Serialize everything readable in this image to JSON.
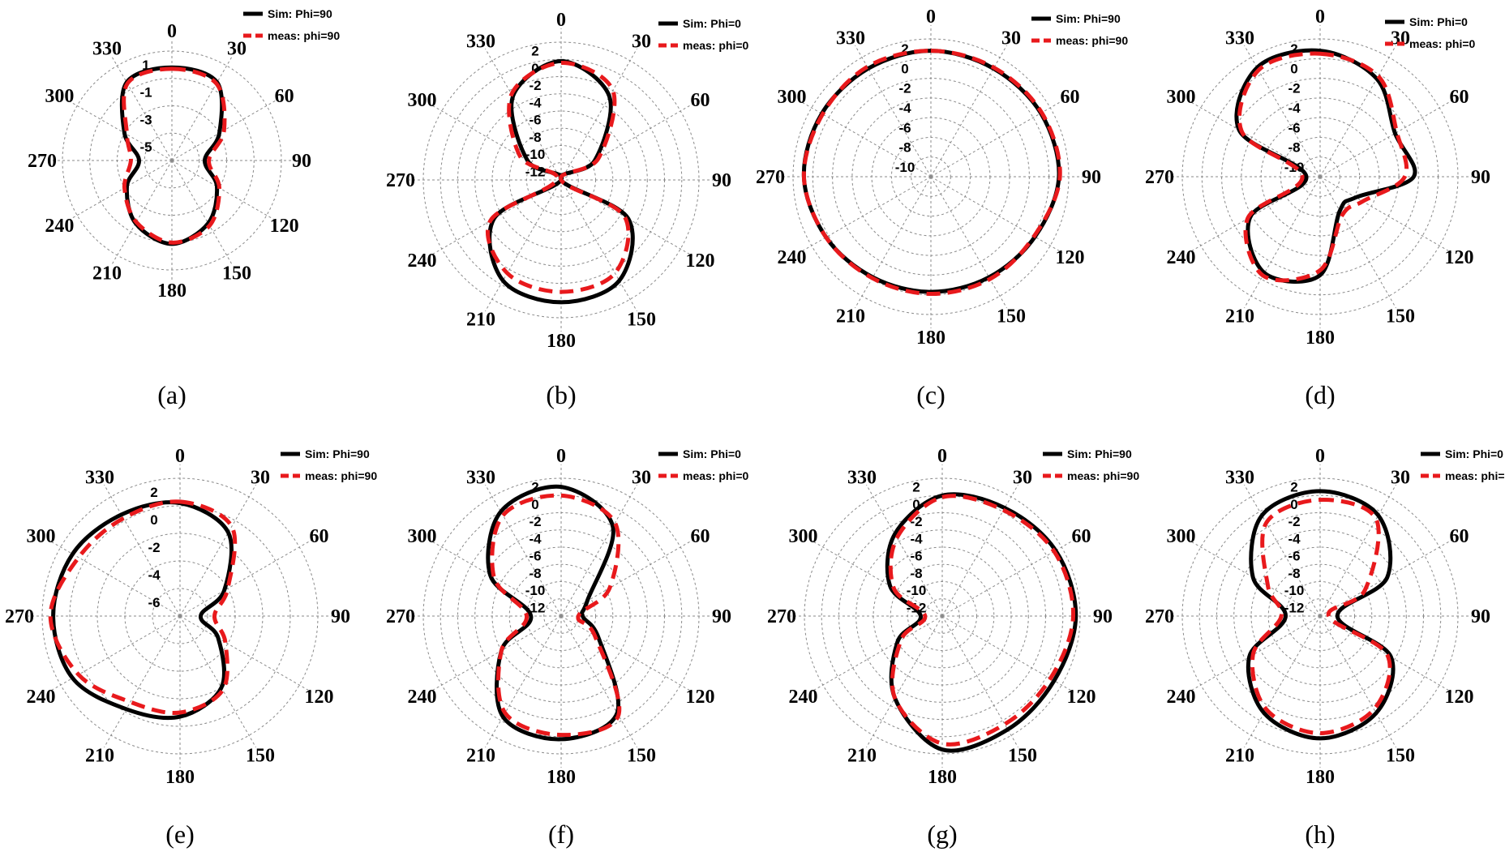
{
  "chart_data": [
    {
      "type": "polar-line",
      "caption": "(a)",
      "angles": [
        0,
        30,
        60,
        90,
        120,
        150,
        180,
        210,
        240,
        270,
        300,
        330
      ],
      "rlim": [
        -6,
        2
      ],
      "radial_ticks": [
        "1",
        "-1",
        "-3",
        "-5"
      ],
      "series": [
        {
          "name": "Sim: Phi=90",
          "theta": [
            0,
            30,
            60,
            90,
            120,
            150,
            180,
            210,
            240,
            270,
            300,
            330
          ],
          "r": [
            0.8,
            0.6,
            -2.0,
            -3.6,
            -2.2,
            -0.7,
            0.1,
            -0.7,
            -2.2,
            -3.6,
            -2.0,
            0.6
          ]
        },
        {
          "name": "meas: phi=90",
          "theta": [
            0,
            30,
            60,
            90,
            120,
            150,
            180,
            210,
            240,
            270,
            300,
            330
          ],
          "r": [
            0.7,
            0.5,
            -1.6,
            -3.3,
            -2.0,
            -0.5,
            0.0,
            -0.8,
            -2.0,
            -3.0,
            -2.2,
            0.5
          ]
        }
      ]
    },
    {
      "type": "polar-line",
      "caption": "(b)",
      "angles": [
        0,
        30,
        60,
        90,
        120,
        150,
        180,
        210,
        240,
        270,
        300,
        330
      ],
      "rlim": [
        -13,
        3
      ],
      "radial_ticks": [
        "2",
        "0",
        "-2",
        "-4",
        "-6",
        "-8",
        "-10",
        "-12"
      ],
      "series": [
        {
          "name": "Sim: Phi=0",
          "theta": [
            0,
            30,
            60,
            90,
            120,
            150,
            180,
            210,
            240,
            270,
            300,
            330
          ],
          "r": [
            0.8,
            -1.8,
            -8.5,
            -13.0,
            -4.0,
            0.5,
            1.2,
            0.5,
            -4.0,
            -13.0,
            -8.5,
            -1.8
          ]
        },
        {
          "name": "meas: phi=0",
          "theta": [
            0,
            30,
            60,
            90,
            120,
            150,
            180,
            210,
            240,
            270,
            300,
            330
          ],
          "r": [
            0.6,
            -1.0,
            -8.0,
            -13.0,
            -4.5,
            -0.5,
            0.0,
            -0.5,
            -3.5,
            -12.5,
            -7.5,
            -1.5
          ]
        }
      ]
    },
    {
      "type": "polar-line",
      "caption": "(c)",
      "angles": [
        0,
        30,
        60,
        90,
        120,
        150,
        180,
        210,
        240,
        270,
        300,
        330
      ],
      "rlim": [
        -11,
        3
      ],
      "radial_ticks": [
        "2",
        "0",
        "-2",
        "-4",
        "-6",
        "-8",
        "-10"
      ],
      "series": [
        {
          "name": "Sim: Phi=90",
          "theta": [
            0,
            30,
            60,
            90,
            120,
            150,
            180,
            210,
            240,
            270,
            300,
            330
          ],
          "r": [
            1.8,
            1.7,
            1.9,
            2.0,
            1.2,
            0.8,
            0.7,
            0.8,
            1.3,
            1.9,
            1.8,
            1.7
          ]
        },
        {
          "name": "meas: phi=90",
          "theta": [
            0,
            30,
            60,
            90,
            120,
            150,
            180,
            210,
            240,
            270,
            300,
            330
          ],
          "r": [
            1.8,
            1.8,
            2.0,
            2.1,
            1.1,
            1.0,
            0.9,
            0.9,
            1.3,
            1.9,
            1.7,
            1.9
          ]
        }
      ]
    },
    {
      "type": "polar-line",
      "caption": "(d)",
      "angles": [
        0,
        30,
        60,
        90,
        120,
        150,
        180,
        210,
        240,
        270,
        300,
        330
      ],
      "rlim": [
        -11,
        3
      ],
      "radial_ticks": [
        "2",
        "0",
        "-2",
        "-4",
        "-6",
        "-8",
        "-10"
      ],
      "series": [
        {
          "name": "Sim: Phi=0",
          "theta": [
            0,
            30,
            60,
            90,
            120,
            150,
            180,
            210,
            240,
            270,
            300,
            330
          ],
          "r": [
            1.8,
            0.5,
            -2.2,
            -1.5,
            -6.8,
            -7.0,
            -1.0,
            0.3,
            -2.8,
            -9.6,
            -1.5,
            1.8
          ]
        },
        {
          "name": "meas: phi=0",
          "theta": [
            0,
            30,
            60,
            90,
            120,
            150,
            180,
            210,
            240,
            270,
            300,
            330
          ],
          "r": [
            1.5,
            0.8,
            -2.0,
            -2.4,
            -6.0,
            -6.5,
            -1.5,
            0.6,
            -2.5,
            -9.2,
            -1.8,
            1.5
          ]
        }
      ]
    },
    {
      "type": "polar-line",
      "caption": "(e)",
      "angles": [
        0,
        30,
        60,
        90,
        120,
        150,
        180,
        210,
        240,
        270,
        300,
        330
      ],
      "rlim": [
        -7,
        3
      ],
      "radial_ticks": [
        "2",
        "0",
        "-2",
        "-4",
        "-6"
      ],
      "series": [
        {
          "name": "Sim: Phi=90",
          "theta": [
            0,
            30,
            60,
            90,
            120,
            150,
            180,
            210,
            240,
            270,
            300,
            330
          ],
          "r": [
            1.2,
            0.0,
            -3.3,
            -5.5,
            -3.8,
            -1.0,
            0.3,
            0.8,
            2.0,
            2.2,
            2.0,
            1.5
          ]
        },
        {
          "name": "meas: phi=90",
          "theta": [
            0,
            30,
            60,
            90,
            120,
            150,
            180,
            210,
            240,
            270,
            300,
            330
          ],
          "r": [
            1.3,
            0.5,
            -3.0,
            -4.5,
            -3.2,
            -0.8,
            0.0,
            0.2,
            1.5,
            2.4,
            1.5,
            1.2
          ]
        }
      ]
    },
    {
      "type": "polar-line",
      "caption": "(f)",
      "angles": [
        0,
        30,
        60,
        90,
        120,
        150,
        180,
        210,
        240,
        270,
        300,
        330
      ],
      "rlim": [
        -13,
        3
      ],
      "radial_ticks": [
        "2",
        "0",
        "-2",
        "-4",
        "-6",
        "-8",
        "-10",
        "-12"
      ],
      "series": [
        {
          "name": "Sim: Phi=0",
          "theta": [
            0,
            30,
            60,
            90,
            120,
            150,
            180,
            210,
            240,
            270,
            300,
            330
          ],
          "r": [
            2.0,
            -1.0,
            -9.5,
            -10.5,
            -8.0,
            0.0,
            1.3,
            0.5,
            -5.0,
            -9.5,
            -3.5,
            1.0
          ]
        },
        {
          "name": "meas: phi=0",
          "theta": [
            0,
            30,
            60,
            90,
            120,
            150,
            180,
            210,
            240,
            270,
            300,
            330
          ],
          "r": [
            1.0,
            -0.5,
            -6.5,
            -11.0,
            -8.5,
            0.3,
            0.8,
            0.0,
            -5.0,
            -9.0,
            -4.0,
            0.5
          ]
        }
      ]
    },
    {
      "type": "polar-line",
      "caption": "(g)",
      "angles": [
        0,
        30,
        60,
        90,
        120,
        150,
        180,
        210,
        240,
        270,
        300,
        330
      ],
      "rlim": [
        -13,
        3
      ],
      "radial_ticks": [
        "2",
        "0",
        "-2",
        "-4",
        "-6",
        "-8",
        "-10",
        "-12"
      ],
      "series": [
        {
          "name": "Sim: Phi=90",
          "theta": [
            0,
            30,
            60,
            90,
            120,
            150,
            180,
            210,
            240,
            270,
            300,
            330
          ],
          "r": [
            1.0,
            1.5,
            2.2,
            2.5,
            2.0,
            2.2,
            2.5,
            -2.0,
            -7.0,
            -10.5,
            -6.0,
            -2.0
          ]
        },
        {
          "name": "meas: phi=90",
          "theta": [
            0,
            30,
            60,
            90,
            120,
            150,
            180,
            210,
            240,
            270,
            300,
            330
          ],
          "r": [
            0.8,
            1.2,
            2.0,
            2.2,
            1.5,
            1.5,
            1.8,
            -2.0,
            -7.5,
            -11.0,
            -6.5,
            -2.5
          ]
        }
      ]
    },
    {
      "type": "polar-line",
      "caption": "(h)",
      "angles": [
        0,
        30,
        60,
        90,
        120,
        150,
        180,
        210,
        240,
        270,
        300,
        330
      ],
      "rlim": [
        -13,
        3
      ],
      "radial_ticks": [
        "2",
        "0",
        "-2",
        "-4",
        "-6",
        "-8",
        "-10",
        "-12"
      ],
      "series": [
        {
          "name": "Sim: Phi=0",
          "theta": [
            0,
            30,
            60,
            90,
            120,
            150,
            180,
            210,
            240,
            270,
            300,
            330
          ],
          "r": [
            1.5,
            0.5,
            -4.0,
            -11.0,
            -3.5,
            0.0,
            1.2,
            0.0,
            -3.5,
            -9.0,
            -4.0,
            0.5
          ]
        },
        {
          "name": "meas: phi=0",
          "theta": [
            0,
            30,
            60,
            90,
            120,
            150,
            180,
            210,
            240,
            270,
            300,
            330
          ],
          "r": [
            0.5,
            0.0,
            -7.0,
            -12.0,
            -4.0,
            -0.5,
            0.6,
            -0.5,
            -4.0,
            -8.5,
            -6.0,
            -0.5
          ]
        }
      ]
    }
  ],
  "colors": {
    "sim": "#000000",
    "meas": "#e8191c",
    "grid": "#8a8a8a"
  }
}
